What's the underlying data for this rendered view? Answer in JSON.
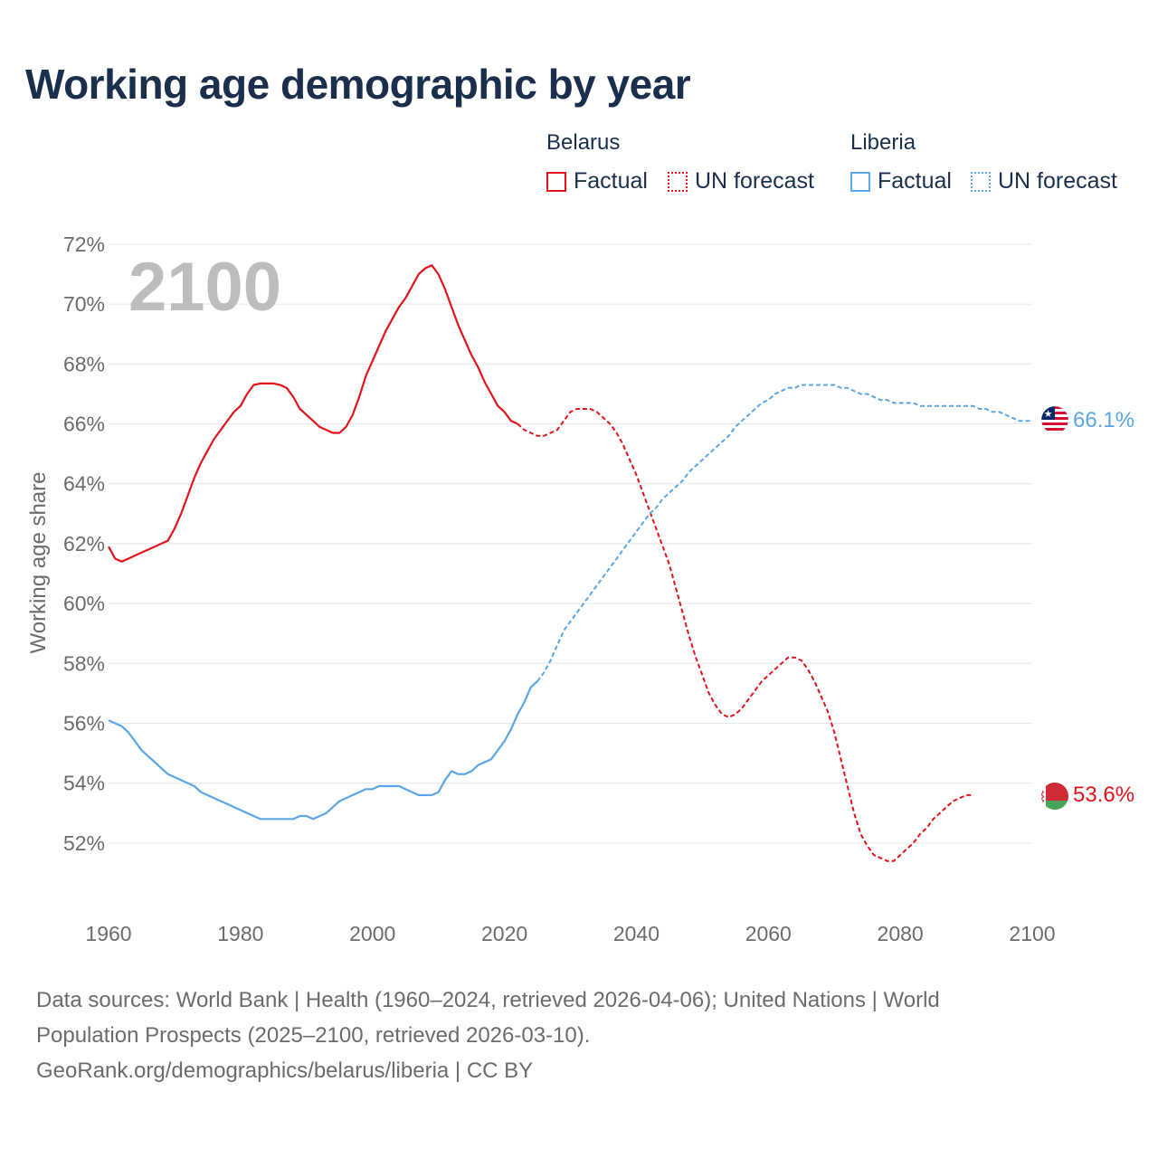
{
  "title": "Working age demographic by year",
  "legend": {
    "groups": [
      {
        "name": "Belarus",
        "factual_label": "Factual",
        "forecast_label": "UN forecast",
        "color": "#e3131b"
      },
      {
        "name": "Liberia",
        "factual_label": "Factual",
        "forecast_label": "UN forecast",
        "color": "#5aa6e6"
      }
    ]
  },
  "year_watermark": "2100",
  "end_labels": {
    "belarus": "53.6%",
    "liberia": "66.1%"
  },
  "sources": {
    "line1": "Data sources: World Bank | Health (1960–2024, retrieved 2026-04-06); United Nations | World",
    "line2": "Population Prospects (2025–2100, retrieved 2026-03-10).",
    "line3": "GeoRank.org/demographics/belarus/liberia | CC BY"
  },
  "chart_data": {
    "type": "line",
    "title": "Working age demographic by year",
    "xlabel": "",
    "ylabel": "Working age share",
    "xlim": [
      1960,
      2100
    ],
    "ylim": [
      50,
      72
    ],
    "x_ticks": [
      1960,
      1980,
      2000,
      2020,
      2040,
      2060,
      2080,
      2100
    ],
    "x_tick_labels": [
      "1960",
      "1980",
      "2000",
      "2020",
      "2040",
      "2060",
      "2080",
      "2100"
    ],
    "y_ticks": [
      52,
      54,
      56,
      58,
      60,
      62,
      64,
      66,
      68,
      70,
      72
    ],
    "y_tick_labels": [
      "52%",
      "54%",
      "56%",
      "58%",
      "60%",
      "62%",
      "64%",
      "66%",
      "68%",
      "70%",
      "72%"
    ],
    "grid": true,
    "series": [
      {
        "name": "Belarus",
        "color": "#e3131b",
        "factual": [
          [
            1960,
            61.9
          ],
          [
            1961,
            61.5
          ],
          [
            1962,
            61.4
          ],
          [
            1963,
            61.5
          ],
          [
            1964,
            61.6
          ],
          [
            1965,
            61.7
          ],
          [
            1966,
            61.8
          ],
          [
            1967,
            61.9
          ],
          [
            1968,
            62.0
          ],
          [
            1969,
            62.1
          ],
          [
            1970,
            62.5
          ],
          [
            1971,
            63.0
          ],
          [
            1972,
            63.6
          ],
          [
            1973,
            64.2
          ],
          [
            1974,
            64.7
          ],
          [
            1975,
            65.1
          ],
          [
            1976,
            65.5
          ],
          [
            1977,
            65.8
          ],
          [
            1978,
            66.1
          ],
          [
            1979,
            66.4
          ],
          [
            1980,
            66.6
          ],
          [
            1981,
            67.0
          ],
          [
            1982,
            67.3
          ],
          [
            1983,
            67.35
          ],
          [
            1984,
            67.35
          ],
          [
            1985,
            67.35
          ],
          [
            1986,
            67.3
          ],
          [
            1987,
            67.2
          ],
          [
            1988,
            66.9
          ],
          [
            1989,
            66.5
          ],
          [
            1990,
            66.3
          ],
          [
            1991,
            66.1
          ],
          [
            1992,
            65.9
          ],
          [
            1993,
            65.8
          ],
          [
            1994,
            65.7
          ],
          [
            1995,
            65.7
          ],
          [
            1996,
            65.9
          ],
          [
            1997,
            66.3
          ],
          [
            1998,
            66.9
          ],
          [
            1999,
            67.6
          ],
          [
            2000,
            68.1
          ],
          [
            2001,
            68.6
          ],
          [
            2002,
            69.1
          ],
          [
            2003,
            69.5
          ],
          [
            2004,
            69.9
          ],
          [
            2005,
            70.2
          ],
          [
            2006,
            70.6
          ],
          [
            2007,
            71.0
          ],
          [
            2008,
            71.2
          ],
          [
            2009,
            71.3
          ],
          [
            2010,
            71.0
          ],
          [
            2011,
            70.5
          ],
          [
            2012,
            69.9
          ],
          [
            2013,
            69.3
          ],
          [
            2014,
            68.8
          ],
          [
            2015,
            68.3
          ],
          [
            2016,
            67.9
          ],
          [
            2017,
            67.4
          ],
          [
            2018,
            67.0
          ],
          [
            2019,
            66.6
          ],
          [
            2020,
            66.4
          ],
          [
            2021,
            66.1
          ],
          [
            2022,
            66.0
          ]
        ],
        "forecast": [
          [
            2022,
            66.0
          ],
          [
            2023,
            65.8
          ],
          [
            2024,
            65.7
          ],
          [
            2025,
            65.6
          ],
          [
            2026,
            65.6
          ],
          [
            2027,
            65.7
          ],
          [
            2028,
            65.8
          ],
          [
            2029,
            66.1
          ],
          [
            2030,
            66.4
          ],
          [
            2031,
            66.5
          ],
          [
            2032,
            66.5
          ],
          [
            2033,
            66.5
          ],
          [
            2034,
            66.4
          ],
          [
            2035,
            66.2
          ],
          [
            2036,
            66.0
          ],
          [
            2037,
            65.7
          ],
          [
            2038,
            65.3
          ],
          [
            2039,
            64.8
          ],
          [
            2040,
            64.3
          ],
          [
            2041,
            63.7
          ],
          [
            2042,
            63.1
          ],
          [
            2043,
            62.5
          ],
          [
            2044,
            61.9
          ],
          [
            2045,
            61.3
          ],
          [
            2046,
            60.5
          ],
          [
            2047,
            59.7
          ],
          [
            2048,
            58.9
          ],
          [
            2049,
            58.2
          ],
          [
            2050,
            57.6
          ],
          [
            2051,
            57.0
          ],
          [
            2052,
            56.6
          ],
          [
            2053,
            56.3
          ],
          [
            2054,
            56.2
          ],
          [
            2055,
            56.3
          ],
          [
            2056,
            56.5
          ],
          [
            2057,
            56.8
          ],
          [
            2058,
            57.1
          ],
          [
            2059,
            57.4
          ],
          [
            2060,
            57.6
          ],
          [
            2061,
            57.8
          ],
          [
            2062,
            58.0
          ],
          [
            2063,
            58.2
          ],
          [
            2064,
            58.2
          ],
          [
            2065,
            58.1
          ],
          [
            2066,
            57.8
          ],
          [
            2067,
            57.4
          ],
          [
            2068,
            56.9
          ],
          [
            2069,
            56.4
          ],
          [
            2070,
            55.7
          ],
          [
            2071,
            54.8
          ],
          [
            2072,
            53.9
          ],
          [
            2073,
            53.0
          ],
          [
            2074,
            52.3
          ],
          [
            2075,
            51.9
          ],
          [
            2076,
            51.6
          ],
          [
            2077,
            51.5
          ],
          [
            2078,
            51.4
          ],
          [
            2079,
            51.4
          ],
          [
            2080,
            51.6
          ],
          [
            2081,
            51.8
          ],
          [
            2082,
            52.0
          ],
          [
            2083,
            52.3
          ],
          [
            2084,
            52.5
          ],
          [
            2085,
            52.8
          ],
          [
            2086,
            53.0
          ],
          [
            2087,
            53.2
          ],
          [
            2088,
            53.4
          ],
          [
            2089,
            53.5
          ],
          [
            2090,
            53.6
          ],
          [
            2091,
            53.6
          ]
        ]
      },
      {
        "name": "Liberia",
        "color": "#5aa6e6",
        "factual": [
          [
            1960,
            56.1
          ],
          [
            1961,
            56.0
          ],
          [
            1962,
            55.9
          ],
          [
            1963,
            55.7
          ],
          [
            1964,
            55.4
          ],
          [
            1965,
            55.1
          ],
          [
            1966,
            54.9
          ],
          [
            1967,
            54.7
          ],
          [
            1968,
            54.5
          ],
          [
            1969,
            54.3
          ],
          [
            1970,
            54.2
          ],
          [
            1971,
            54.1
          ],
          [
            1972,
            54.0
          ],
          [
            1973,
            53.9
          ],
          [
            1974,
            53.7
          ],
          [
            1975,
            53.6
          ],
          [
            1976,
            53.5
          ],
          [
            1977,
            53.4
          ],
          [
            1978,
            53.3
          ],
          [
            1979,
            53.2
          ],
          [
            1980,
            53.1
          ],
          [
            1981,
            53.0
          ],
          [
            1982,
            52.9
          ],
          [
            1983,
            52.8
          ],
          [
            1984,
            52.8
          ],
          [
            1985,
            52.8
          ],
          [
            1986,
            52.8
          ],
          [
            1987,
            52.8
          ],
          [
            1988,
            52.8
          ],
          [
            1989,
            52.9
          ],
          [
            1990,
            52.9
          ],
          [
            1991,
            52.8
          ],
          [
            1992,
            52.9
          ],
          [
            1993,
            53.0
          ],
          [
            1994,
            53.2
          ],
          [
            1995,
            53.4
          ],
          [
            1996,
            53.5
          ],
          [
            1997,
            53.6
          ],
          [
            1998,
            53.7
          ],
          [
            1999,
            53.8
          ],
          [
            2000,
            53.8
          ],
          [
            2001,
            53.9
          ],
          [
            2002,
            53.9
          ],
          [
            2003,
            53.9
          ],
          [
            2004,
            53.9
          ],
          [
            2005,
            53.8
          ],
          [
            2006,
            53.7
          ],
          [
            2007,
            53.6
          ],
          [
            2008,
            53.6
          ],
          [
            2009,
            53.6
          ],
          [
            2010,
            53.7
          ],
          [
            2011,
            54.1
          ],
          [
            2012,
            54.4
          ],
          [
            2013,
            54.3
          ],
          [
            2014,
            54.3
          ],
          [
            2015,
            54.4
          ],
          [
            2016,
            54.6
          ],
          [
            2017,
            54.7
          ],
          [
            2018,
            54.8
          ],
          [
            2019,
            55.1
          ],
          [
            2020,
            55.4
          ],
          [
            2021,
            55.8
          ],
          [
            2022,
            56.3
          ],
          [
            2023,
            56.7
          ],
          [
            2024,
            57.2
          ],
          [
            2025,
            57.4
          ]
        ],
        "forecast": [
          [
            2025,
            57.4
          ],
          [
            2026,
            57.7
          ],
          [
            2027,
            58.1
          ],
          [
            2028,
            58.6
          ],
          [
            2029,
            59.1
          ],
          [
            2030,
            59.4
          ],
          [
            2031,
            59.7
          ],
          [
            2032,
            60.0
          ],
          [
            2033,
            60.3
          ],
          [
            2034,
            60.6
          ],
          [
            2035,
            60.9
          ],
          [
            2036,
            61.2
          ],
          [
            2037,
            61.5
          ],
          [
            2038,
            61.8
          ],
          [
            2039,
            62.1
          ],
          [
            2040,
            62.4
          ],
          [
            2041,
            62.7
          ],
          [
            2042,
            63.0
          ],
          [
            2043,
            63.2
          ],
          [
            2044,
            63.5
          ],
          [
            2045,
            63.7
          ],
          [
            2046,
            63.9
          ],
          [
            2047,
            64.1
          ],
          [
            2048,
            64.4
          ],
          [
            2049,
            64.6
          ],
          [
            2050,
            64.8
          ],
          [
            2051,
            65.0
          ],
          [
            2052,
            65.2
          ],
          [
            2053,
            65.4
          ],
          [
            2054,
            65.6
          ],
          [
            2055,
            65.9
          ],
          [
            2056,
            66.1
          ],
          [
            2057,
            66.3
          ],
          [
            2058,
            66.5
          ],
          [
            2059,
            66.7
          ],
          [
            2060,
            66.8
          ],
          [
            2061,
            67.0
          ],
          [
            2062,
            67.1
          ],
          [
            2063,
            67.2
          ],
          [
            2064,
            67.2
          ],
          [
            2065,
            67.3
          ],
          [
            2066,
            67.3
          ],
          [
            2067,
            67.3
          ],
          [
            2068,
            67.3
          ],
          [
            2069,
            67.3
          ],
          [
            2070,
            67.3
          ],
          [
            2071,
            67.2
          ],
          [
            2072,
            67.2
          ],
          [
            2073,
            67.1
          ],
          [
            2074,
            67.0
          ],
          [
            2075,
            67.0
          ],
          [
            2076,
            66.9
          ],
          [
            2077,
            66.8
          ],
          [
            2078,
            66.8
          ],
          [
            2079,
            66.7
          ],
          [
            2080,
            66.7
          ],
          [
            2081,
            66.7
          ],
          [
            2082,
            66.7
          ],
          [
            2083,
            66.6
          ],
          [
            2084,
            66.6
          ],
          [
            2085,
            66.6
          ],
          [
            2086,
            66.6
          ],
          [
            2087,
            66.6
          ],
          [
            2088,
            66.6
          ],
          [
            2089,
            66.6
          ],
          [
            2090,
            66.6
          ],
          [
            2091,
            66.6
          ],
          [
            2092,
            66.5
          ],
          [
            2093,
            66.5
          ],
          [
            2094,
            66.4
          ],
          [
            2095,
            66.4
          ],
          [
            2096,
            66.3
          ],
          [
            2097,
            66.2
          ],
          [
            2098,
            66.1
          ],
          [
            2099,
            66.1
          ],
          [
            2100,
            66.1
          ]
        ]
      }
    ]
  }
}
